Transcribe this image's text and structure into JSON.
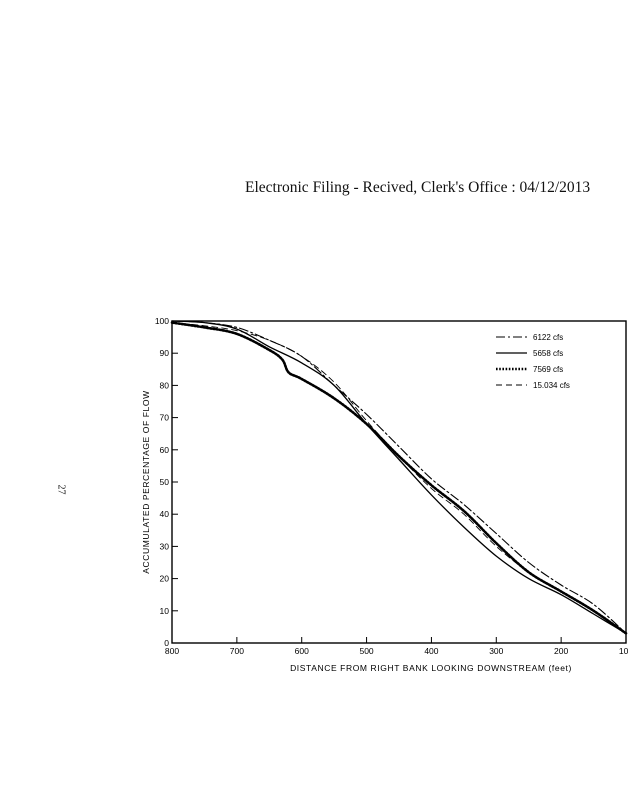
{
  "header": {
    "stamp": "Electronic Filing - Recived, Clerk's Office :  04/12/2013"
  },
  "page": {
    "number": "27"
  },
  "chart_data": {
    "type": "line",
    "title": "",
    "xlabel": "DISTANCE FROM RIGHT BANK LOOKING DOWNSTREAM (feet)",
    "ylabel": "ACCUMULATED PERCENTAGE OF FLOW",
    "xlim": [
      800,
      100
    ],
    "ylim": [
      0,
      100
    ],
    "x_reversed": true,
    "xticks": [
      800,
      700,
      600,
      500,
      400,
      300,
      200,
      100
    ],
    "yticks": [
      0,
      10,
      20,
      30,
      40,
      50,
      60,
      70,
      80,
      90,
      100
    ],
    "grid": false,
    "legend_position": "top-right",
    "series": [
      {
        "name": "6122 cfs",
        "style": "dash-dot",
        "x": [
          800,
          750,
          700,
          650,
          600,
          550,
          500,
          450,
          400,
          350,
          300,
          250,
          200,
          150,
          100
        ],
        "y": [
          100,
          99.5,
          98,
          94,
          89,
          80,
          71,
          61,
          51,
          43,
          34,
          25,
          18,
          12,
          3
        ]
      },
      {
        "name": "5658 cfs",
        "style": "solid",
        "x": [
          800,
          750,
          700,
          650,
          600,
          550,
          500,
          450,
          400,
          350,
          300,
          250,
          200,
          150,
          100
        ],
        "y": [
          100,
          99.5,
          97.5,
          92,
          87,
          80,
          68,
          57,
          46,
          36,
          27,
          20,
          15,
          9,
          3
        ]
      },
      {
        "name": "7569 cfs",
        "style": "dotted",
        "x": [
          800,
          750,
          700,
          650,
          630,
          620,
          600,
          550,
          500,
          450,
          400,
          350,
          300,
          250,
          200,
          150,
          100
        ],
        "y": [
          99.5,
          98,
          96,
          91,
          88,
          84,
          82,
          76,
          68,
          58,
          49,
          41,
          31,
          22,
          16,
          10,
          3
        ]
      },
      {
        "name": "15.034 cfs",
        "style": "dashed",
        "x": [
          800,
          750,
          700,
          650,
          600,
          550,
          500,
          450,
          400,
          350,
          300,
          250,
          200,
          150,
          100
        ],
        "y": [
          99.5,
          98.5,
          97,
          94,
          89,
          81,
          69,
          58,
          48,
          40,
          30,
          22,
          16,
          10,
          3
        ]
      }
    ]
  }
}
